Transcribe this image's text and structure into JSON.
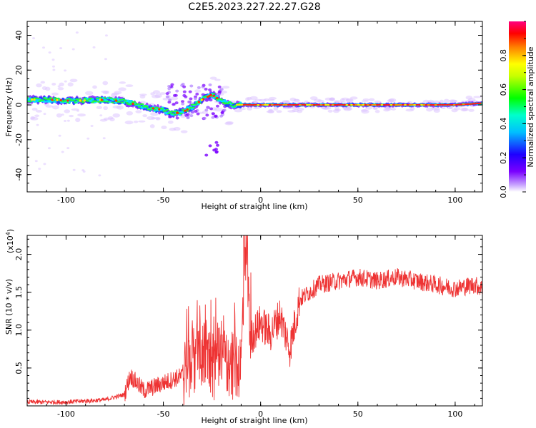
{
  "title": "C2E5.2023.227.22.27.G28",
  "chart_data": [
    {
      "type": "heatmap",
      "xlabel": "Height of straight line (km)",
      "ylabel": "Frequency (Hz)",
      "xlim": [
        -120,
        114
      ],
      "ylim": [
        -50,
        48
      ],
      "xticks": [
        -100,
        -50,
        0,
        50,
        100
      ],
      "yticks": [
        -40,
        -20,
        0,
        20,
        40
      ],
      "colorbar": {
        "label": "Normalized spectral amplitude",
        "range": [
          0,
          1
        ],
        "ticks": [
          "0.0",
          "0.2",
          "0.4",
          "0.6",
          "0.8"
        ],
        "colors": [
          "#ffffff",
          "#7a00ff",
          "#0000ff",
          "#00ffff",
          "#00ff00",
          "#ffff00",
          "#ff7f00",
          "#ff0000",
          "#ff0080"
        ]
      },
      "ridge": {
        "x": [
          -120,
          -110,
          -100,
          -90,
          -80,
          -70,
          -60,
          -50,
          -45,
          -40,
          -35,
          -30,
          -25,
          -20,
          -15,
          -10,
          0,
          10,
          20,
          30,
          50,
          70,
          90,
          100,
          114
        ],
        "y": [
          3,
          3,
          2.5,
          2.5,
          3,
          2,
          -1,
          -3,
          -5,
          -4,
          -1,
          3,
          6,
          2,
          0,
          0,
          0,
          0,
          0,
          0,
          0,
          0,
          0,
          0,
          1
        ]
      }
    },
    {
      "type": "line",
      "xlabel": "Height of straight line (km)",
      "ylabel": "SNR (10 * v/v)",
      "scale_label": "(x10",
      "scale_exponent": "4",
      "scale_suffix": ")",
      "xlim": [
        -120,
        114
      ],
      "ylim": [
        0,
        2.25
      ],
      "xticks": [
        -100,
        -50,
        0,
        50,
        100
      ],
      "yticks": [
        "0.5",
        "1.0",
        "1.5",
        "2.0"
      ],
      "series": [
        {
          "color": "#ee3333",
          "x": [
            -120,
            -100,
            -80,
            -70,
            -67,
            -60,
            -50,
            -40,
            -35,
            -30,
            -25,
            -20,
            -15,
            -10,
            -8,
            -5,
            0,
            5,
            10,
            15,
            20,
            25,
            30,
            40,
            50,
            60,
            70,
            80,
            90,
            100,
            110,
            114
          ],
          "y": [
            0.05,
            0.05,
            0.08,
            0.15,
            0.4,
            0.2,
            0.3,
            0.4,
            0.6,
            0.7,
            0.5,
            0.6,
            0.5,
            0.55,
            2.2,
            0.9,
            1.1,
            0.95,
            1.2,
            0.75,
            1.4,
            1.5,
            1.6,
            1.65,
            1.7,
            1.65,
            1.7,
            1.65,
            1.6,
            1.55,
            1.6,
            1.55
          ]
        }
      ]
    }
  ]
}
